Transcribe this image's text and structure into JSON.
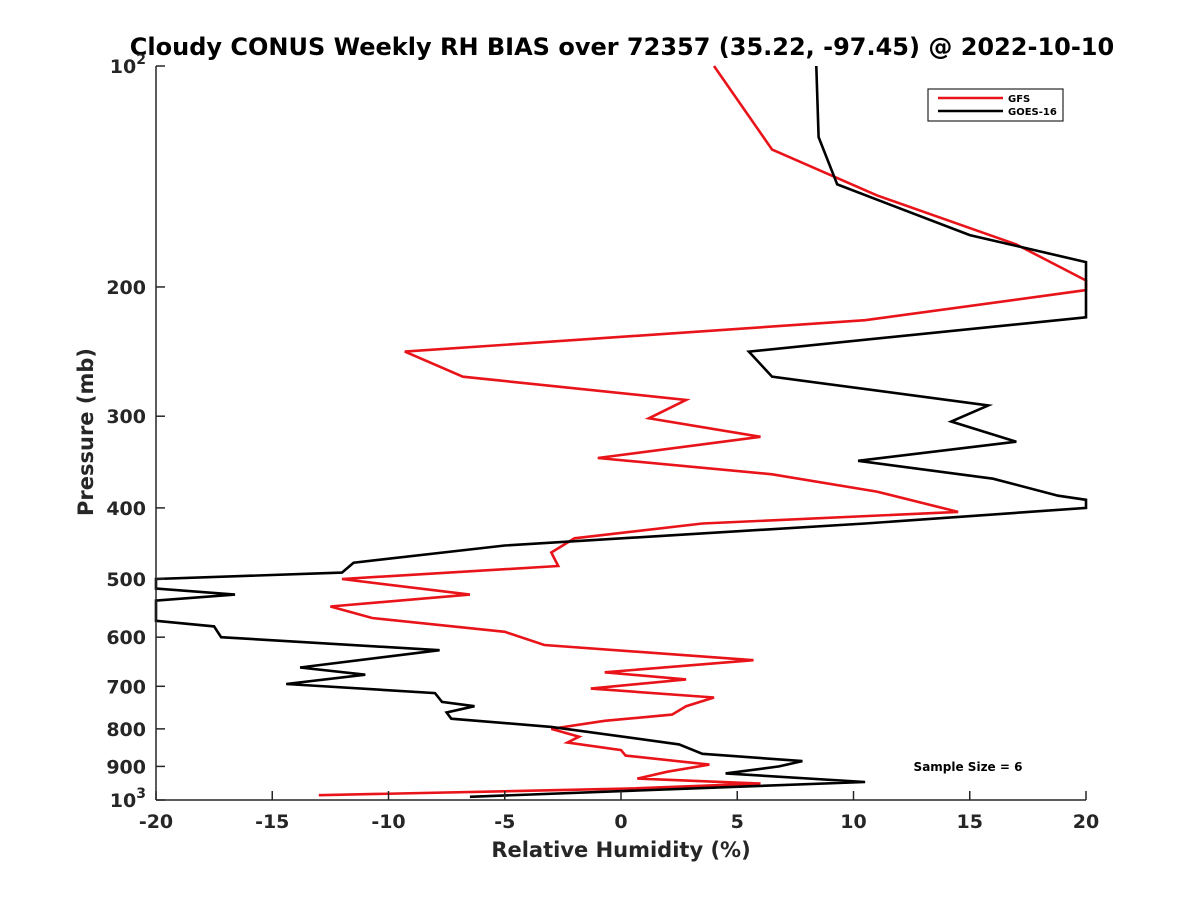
{
  "chart_data": {
    "type": "line",
    "title": "Cloudy CONUS Weekly RH BIAS over 72357 (35.22, -97.45) @ 2022-10-10",
    "xlabel": "Relative Humidity (%)",
    "ylabel": "Pressure (mb)",
    "xlim": [
      -20,
      20
    ],
    "ylim": [
      100,
      1000
    ],
    "y_scale": "log",
    "y_reversed": true,
    "grid": false,
    "x_ticks": [
      -20,
      -15,
      -10,
      -5,
      0,
      5,
      10,
      15,
      20
    ],
    "x_tick_labels": [
      "-20",
      "-15",
      "-10",
      "-5",
      "0",
      "5",
      "10",
      "15",
      "20"
    ],
    "y_ticks": [
      {
        "value": 100,
        "base": "10",
        "exp": "2"
      },
      {
        "value": 200,
        "label": "200"
      },
      {
        "value": 300,
        "label": "300"
      },
      {
        "value": 400,
        "label": "400"
      },
      {
        "value": 500,
        "label": "500"
      },
      {
        "value": 600,
        "label": "600"
      },
      {
        "value": 700,
        "label": "700"
      },
      {
        "value": 800,
        "label": "800"
      },
      {
        "value": 900,
        "label": "900"
      },
      {
        "value": 1000,
        "base": "10",
        "exp": "3"
      }
    ],
    "legend_position": "top-right",
    "annotation": "Sample Size = 6",
    "series": [
      {
        "name": "GFS",
        "color": "#e8141a",
        "points": [
          [
            4,
            100
          ],
          [
            6.5,
            130
          ],
          [
            11,
            150
          ],
          [
            17,
            175
          ],
          [
            20,
            196
          ],
          [
            20,
            202
          ],
          [
            10.5,
            222
          ],
          [
            -9.3,
            245
          ],
          [
            -6.8,
            265
          ],
          [
            2.8,
            285
          ],
          [
            1.2,
            302
          ],
          [
            6,
            320
          ],
          [
            -1,
            342
          ],
          [
            6.5,
            360
          ],
          [
            11,
            380
          ],
          [
            14.5,
            405
          ],
          [
            3.5,
            420
          ],
          [
            -2,
            440
          ],
          [
            -3,
            460
          ],
          [
            -2.7,
            480
          ],
          [
            -12,
            500
          ],
          [
            -6.5,
            525
          ],
          [
            -12.5,
            545
          ],
          [
            -10.7,
            565
          ],
          [
            -5,
            590
          ],
          [
            -3.3,
            615
          ],
          [
            5.7,
            645
          ],
          [
            -0.7,
            670
          ],
          [
            2.8,
            685
          ],
          [
            -1.3,
            705
          ],
          [
            4,
            725
          ],
          [
            2.8,
            745
          ],
          [
            2.2,
            765
          ],
          [
            -0.7,
            780
          ],
          [
            -3,
            800
          ],
          [
            -1.8,
            820
          ],
          [
            -2.3,
            835
          ],
          [
            0,
            855
          ],
          [
            0.2,
            870
          ],
          [
            3.8,
            895
          ],
          [
            2,
            915
          ],
          [
            0.7,
            935
          ],
          [
            6,
            950
          ],
          [
            0.3,
            965
          ],
          [
            -13,
            985
          ]
        ]
      },
      {
        "name": "GOES-16",
        "color": "#000000",
        "points": [
          [
            8.4,
            100
          ],
          [
            8.5,
            125
          ],
          [
            9.3,
            145
          ],
          [
            15,
            170
          ],
          [
            20,
            185
          ],
          [
            20,
            220
          ],
          [
            5.5,
            245
          ],
          [
            6.5,
            265
          ],
          [
            15.8,
            290
          ],
          [
            14.2,
            305
          ],
          [
            17,
            325
          ],
          [
            10.2,
            345
          ],
          [
            16,
            365
          ],
          [
            18.8,
            385
          ],
          [
            20,
            390
          ],
          [
            20,
            400
          ],
          [
            10.5,
            420
          ],
          [
            -5,
            450
          ],
          [
            -11.5,
            475
          ],
          [
            -12,
            490
          ],
          [
            -20,
            500
          ],
          [
            -20,
            515
          ],
          [
            -16.6,
            525
          ],
          [
            -20,
            535
          ],
          [
            -20,
            570
          ],
          [
            -17.5,
            580
          ],
          [
            -17.2,
            600
          ],
          [
            -7.8,
            625
          ],
          [
            -13.8,
            660
          ],
          [
            -11,
            675
          ],
          [
            -14.4,
            695
          ],
          [
            -8,
            715
          ],
          [
            -7.7,
            735
          ],
          [
            -6.3,
            745
          ],
          [
            -7.5,
            760
          ],
          [
            -7.3,
            775
          ],
          [
            -3,
            795
          ],
          [
            2.5,
            840
          ],
          [
            3.5,
            865
          ],
          [
            7.8,
            885
          ],
          [
            6.8,
            900
          ],
          [
            4.5,
            920
          ],
          [
            10.5,
            945
          ],
          [
            -6.5,
            990
          ]
        ]
      }
    ]
  }
}
